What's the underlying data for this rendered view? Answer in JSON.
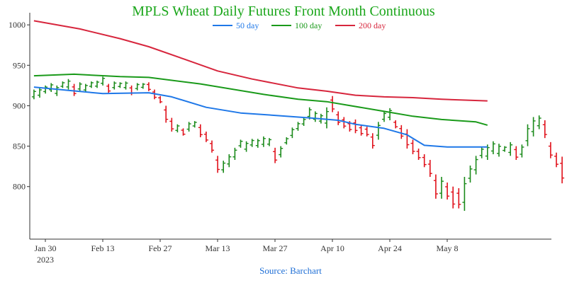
{
  "chart_data": {
    "type": "line",
    "title": "MPLS Wheat Daily Futures Front Month Continuous",
    "source": "Source: Barchart",
    "xlabel": "",
    "ylabel": "",
    "ylim": [
      735,
      1015
    ],
    "grid": false,
    "legend_position": "top-center",
    "colors": {
      "title": "#1aa61a",
      "source": "#1f6fd6",
      "ma50": "#1f78e8",
      "ma100": "#1a9a1a",
      "ma200": "#d7263d",
      "up": "#1a8a1a",
      "down": "#e0101a",
      "axis": "#333333"
    },
    "y_ticks": [
      800,
      850,
      900,
      950,
      1000
    ],
    "x_ticks": [
      {
        "label": "Jan 30",
        "sublabel": "2023",
        "x": 0
      },
      {
        "label": "Feb 13",
        "x": 10
      },
      {
        "label": "Feb 27",
        "x": 20
      },
      {
        "label": "Mar 13",
        "x": 30
      },
      {
        "label": "Mar 27",
        "x": 40
      },
      {
        "label": "Apr 10",
        "x": 50
      },
      {
        "label": "Apr 24",
        "x": 60
      },
      {
        "label": "May 8",
        "x": 70
      }
    ],
    "series": [
      {
        "name": "50 day",
        "color": "#1f78e8",
        "points": [
          [
            -1,
            923
          ],
          [
            5,
            919
          ],
          [
            11,
            915
          ],
          [
            19,
            916
          ],
          [
            23,
            911
          ],
          [
            29,
            898
          ],
          [
            35,
            891
          ],
          [
            41,
            888
          ],
          [
            47,
            885
          ],
          [
            52,
            882
          ],
          [
            55,
            877
          ],
          [
            60,
            872
          ],
          [
            64,
            864
          ],
          [
            67,
            851
          ],
          [
            71,
            849
          ],
          [
            74,
            849
          ],
          [
            78,
            849
          ]
        ]
      },
      {
        "name": "100 day",
        "color": "#1a9a1a",
        "points": [
          [
            -1,
            937
          ],
          [
            6,
            939
          ],
          [
            14,
            936
          ],
          [
            19,
            935
          ],
          [
            28,
            927
          ],
          [
            39,
            914
          ],
          [
            45,
            908
          ],
          [
            50,
            905
          ],
          [
            60,
            893
          ],
          [
            65,
            887
          ],
          [
            70,
            883
          ],
          [
            76,
            880
          ],
          [
            78,
            876
          ]
        ]
      },
      {
        "name": "200 day",
        "color": "#d7263d",
        "points": [
          [
            -1,
            1005
          ],
          [
            7,
            995
          ],
          [
            14,
            983
          ],
          [
            19,
            973
          ],
          [
            25,
            958
          ],
          [
            31,
            943
          ],
          [
            37,
            933
          ],
          [
            45,
            922
          ],
          [
            50,
            918
          ],
          [
            55,
            913
          ],
          [
            60,
            911
          ],
          [
            65,
            910
          ],
          [
            70,
            908
          ],
          [
            78,
            906
          ]
        ]
      }
    ],
    "bars": [
      [
        -1,
        908,
        920,
        "up"
      ],
      [
        0,
        910,
        922,
        "up"
      ],
      [
        1,
        915,
        925,
        "up"
      ],
      [
        2,
        917,
        928,
        "up"
      ],
      [
        3,
        912,
        925,
        "up"
      ],
      [
        4,
        922,
        930,
        "up"
      ],
      [
        5,
        920,
        933,
        "up"
      ],
      [
        6,
        912,
        927,
        "down"
      ],
      [
        7,
        918,
        929,
        "up"
      ],
      [
        8,
        917,
        927,
        "up"
      ],
      [
        9,
        922,
        930,
        "up"
      ],
      [
        10,
        922,
        931,
        "up"
      ],
      [
        11,
        925,
        936,
        "up"
      ],
      [
        12,
        916,
        927,
        "down"
      ],
      [
        13,
        920,
        930,
        "up"
      ],
      [
        14,
        922,
        929,
        "up"
      ],
      [
        15,
        920,
        930,
        "up"
      ],
      [
        16,
        913,
        925,
        "down"
      ],
      [
        17,
        919,
        928,
        "up"
      ],
      [
        18,
        921,
        928,
        "up"
      ],
      [
        19,
        918,
        929,
        "down"
      ],
      [
        20,
        908,
        920,
        "down"
      ],
      [
        21,
        903,
        912,
        "down"
      ],
      [
        22,
        879,
        900,
        "down"
      ],
      [
        23,
        868,
        885,
        "down"
      ],
      [
        24,
        867,
        877,
        "up"
      ],
      [
        25,
        863,
        872,
        "down"
      ],
      [
        26,
        868,
        880,
        "up"
      ],
      [
        27,
        873,
        881,
        "up"
      ],
      [
        28,
        861,
        877,
        "down"
      ],
      [
        29,
        855,
        868,
        "down"
      ],
      [
        30,
        842,
        857,
        "down"
      ],
      [
        31,
        817,
        838,
        "down"
      ],
      [
        32,
        817,
        832,
        "up"
      ],
      [
        33,
        824,
        840,
        "up"
      ],
      [
        34,
        833,
        848,
        "up"
      ],
      [
        35,
        848,
        858,
        "up"
      ],
      [
        36,
        843,
        856,
        "up"
      ],
      [
        37,
        849,
        859,
        "up"
      ],
      [
        38,
        848,
        859,
        "up"
      ],
      [
        39,
        849,
        862,
        "up"
      ],
      [
        40,
        850,
        860,
        "up"
      ],
      [
        41,
        829,
        848,
        "down"
      ],
      [
        42,
        836,
        850,
        "up"
      ],
      [
        43,
        852,
        861,
        "up"
      ],
      [
        44,
        860,
        873,
        "up"
      ],
      [
        45,
        869,
        880,
        "up"
      ],
      [
        46,
        875,
        885,
        "up"
      ],
      [
        47,
        883,
        898,
        "up"
      ],
      [
        48,
        880,
        893,
        "up"
      ],
      [
        49,
        878,
        890,
        "up"
      ],
      [
        50,
        872,
        898,
        "up"
      ],
      [
        51,
        892,
        912,
        "down"
      ],
      [
        52,
        876,
        893,
        "down"
      ],
      [
        53,
        872,
        886,
        "down"
      ],
      [
        54,
        868,
        881,
        "down"
      ],
      [
        55,
        866,
        883,
        "down"
      ],
      [
        56,
        863,
        876,
        "down"
      ],
      [
        57,
        862,
        874,
        "down"
      ],
      [
        58,
        847,
        866,
        "down"
      ],
      [
        59,
        858,
        880,
        "up"
      ],
      [
        60,
        880,
        893,
        "up"
      ],
      [
        61,
        882,
        897,
        "up"
      ],
      [
        62,
        872,
        882,
        "down"
      ],
      [
        63,
        859,
        876,
        "down"
      ],
      [
        64,
        847,
        871,
        "down"
      ],
      [
        65,
        840,
        858,
        "down"
      ],
      [
        66,
        833,
        847,
        "down"
      ],
      [
        67,
        824,
        840,
        "down"
      ],
      [
        68,
        812,
        833,
        "down"
      ],
      [
        69,
        785,
        815,
        "down"
      ],
      [
        70,
        785,
        812,
        "up"
      ],
      [
        71,
        784,
        805,
        "down"
      ],
      [
        72,
        773,
        800,
        "down"
      ],
      [
        73,
        773,
        798,
        "down"
      ],
      [
        74,
        770,
        812,
        "up"
      ],
      [
        75,
        805,
        826,
        "up"
      ],
      [
        76,
        815,
        838,
        "up"
      ],
      [
        77,
        835,
        849,
        "up"
      ],
      [
        78,
        833,
        852,
        "up"
      ],
      [
        79,
        840,
        856,
        "up"
      ],
      [
        80,
        837,
        853,
        "up"
      ],
      [
        81,
        843,
        850,
        "up"
      ],
      [
        82,
        838,
        855,
        "up"
      ],
      [
        83,
        833,
        850,
        "down"
      ],
      [
        84,
        836,
        852,
        "up"
      ],
      [
        85,
        850,
        877,
        "up"
      ],
      [
        86,
        862,
        886,
        "up"
      ],
      [
        87,
        871,
        888,
        "up"
      ],
      [
        88,
        860,
        882,
        "down"
      ],
      [
        89,
        835,
        855,
        "down"
      ],
      [
        90,
        824,
        842,
        "down"
      ],
      [
        91,
        804,
        837,
        "down"
      ]
    ]
  }
}
